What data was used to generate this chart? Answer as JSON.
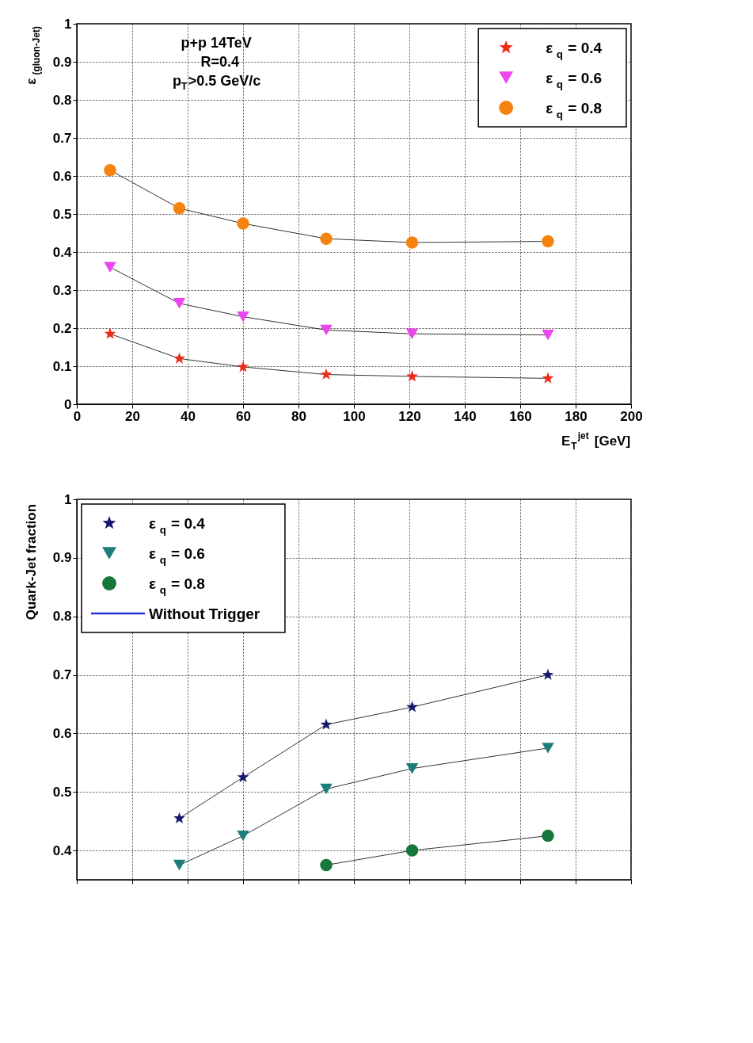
{
  "chart_data": [
    {
      "type": "line",
      "xlabel": "E$_{T}$$^{jet}$ [GeV]",
      "ylabel": "ε$_{(gluon-Jet)}$",
      "annotations": [
        "p+p 14TeV",
        "R=0.4",
        "p$_{T}$>0.5 GeV/c"
      ],
      "x": [
        12,
        37,
        60,
        90,
        121,
        170
      ],
      "xlim": [
        0,
        200
      ],
      "xticks": [
        0,
        20,
        40,
        60,
        80,
        100,
        120,
        140,
        160,
        180,
        200
      ],
      "ylim": [
        0,
        1
      ],
      "yticks": [
        0,
        0.1,
        0.2,
        0.3,
        0.4,
        0.5,
        0.6,
        0.7,
        0.8,
        0.9,
        1
      ],
      "grid": true,
      "legend": "top right",
      "series": [
        {
          "name": "ε$_{q}$ = 0.4",
          "color": "#ee2a1a",
          "marker": "star",
          "values": [
            0.185,
            0.12,
            0.098,
            0.078,
            0.073,
            0.068
          ]
        },
        {
          "name": "ε$_{q}$ = 0.6",
          "color": "#ee44ee",
          "marker": "triangle",
          "values": [
            0.36,
            0.265,
            0.23,
            0.195,
            0.185,
            0.182
          ]
        },
        {
          "name": "ε$_{q}$ = 0.8",
          "color": "#f6820f",
          "marker": "circle",
          "values": [
            0.615,
            0.515,
            0.475,
            0.435,
            0.425,
            0.428
          ]
        }
      ]
    },
    {
      "type": "line",
      "ylabel": "Quark-Jet fraction",
      "x": [
        37,
        60,
        90,
        121,
        170
      ],
      "xlim": [
        0,
        200
      ],
      "ylim": [
        0.35,
        1
      ],
      "yticks": [
        0.4,
        0.5,
        0.6,
        0.7,
        0.8,
        0.9,
        1
      ],
      "tick_labels": "y",
      "grid": true,
      "legend": "top left",
      "series": [
        {
          "name": "ε$_{q}$ = 0.4",
          "color": "#151a6e",
          "marker": "star",
          "values": [
            0.455,
            0.525,
            0.615,
            0.645,
            0.7
          ]
        },
        {
          "name": "ε$_{q}$ = 0.6",
          "color": "#1d7d78",
          "marker": "triangle",
          "values": [
            0.375,
            0.425,
            0.505,
            0.54,
            0.575
          ]
        },
        {
          "name": "ε$_{q}$ = 0.8",
          "color": "#17773a",
          "marker": "circle",
          "values": [
            null,
            null,
            0.375,
            0.4,
            0.425
          ]
        },
        {
          "name": "Without Trigger",
          "color": "#2a35e0",
          "marker": "none",
          "values": [
            null,
            null,
            null,
            null,
            null
          ]
        }
      ]
    }
  ]
}
